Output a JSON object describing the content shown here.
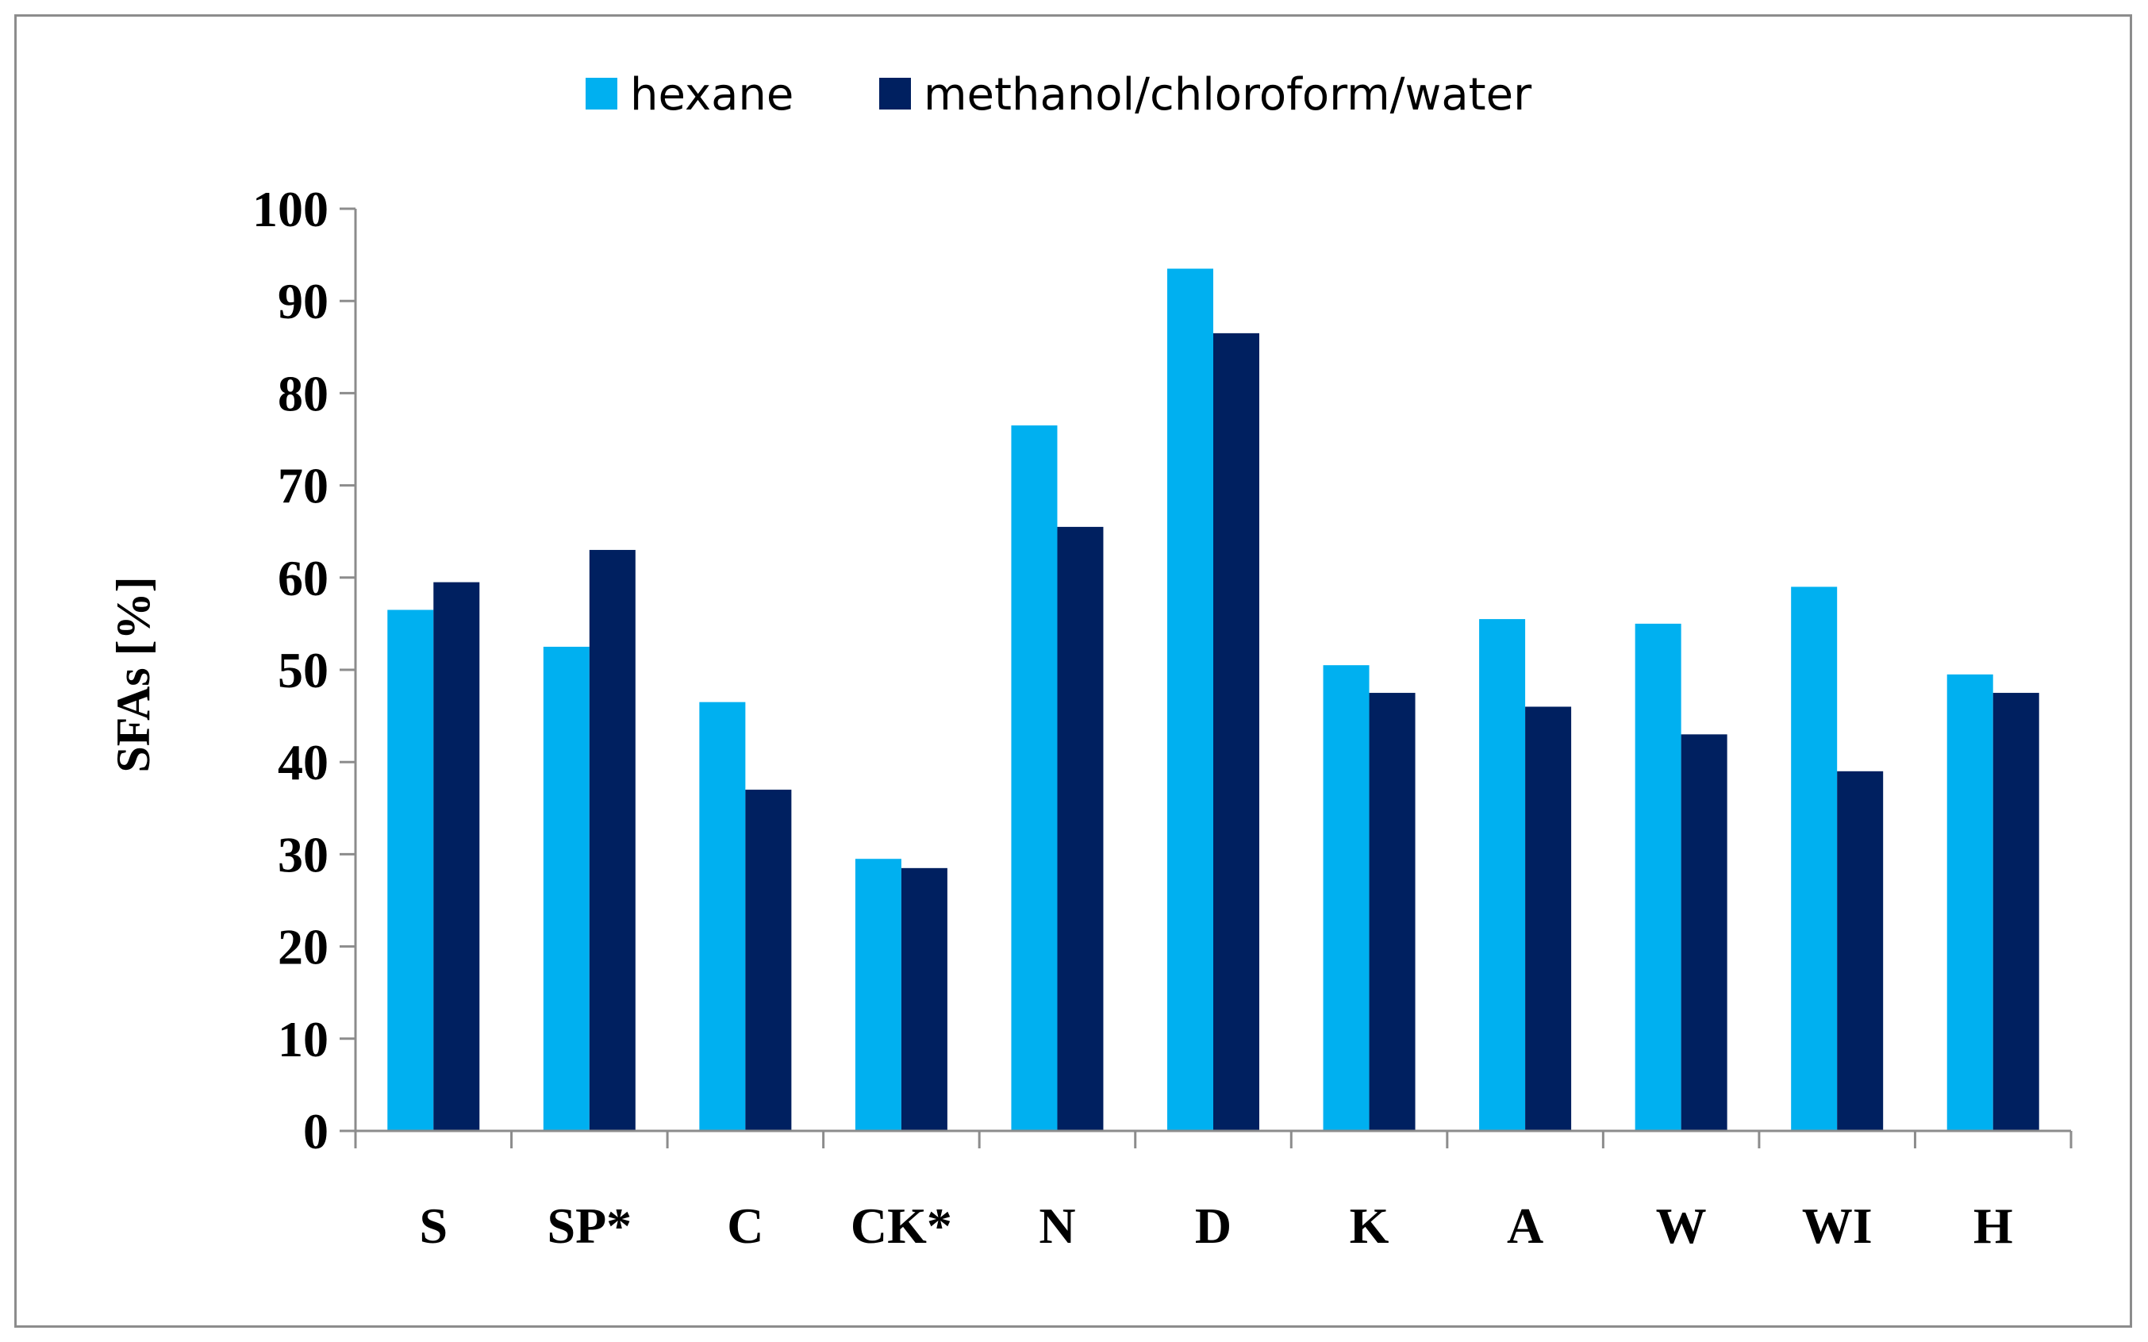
{
  "chart_data": {
    "type": "bar",
    "categories": [
      "S",
      "SP*",
      "C",
      "CK*",
      "N",
      "D",
      "K",
      "A",
      "W",
      "WI",
      "H"
    ],
    "series": [
      {
        "name": "hexane",
        "color": "#00b0f0",
        "values": [
          56.5,
          52.5,
          46.5,
          29.5,
          76.5,
          93.5,
          50.5,
          55.5,
          55,
          59,
          49.5
        ]
      },
      {
        "name": "methanol/chloroform/water",
        "color": "#002060",
        "values": [
          59.5,
          63,
          37,
          28.5,
          65.5,
          86.5,
          47.5,
          46,
          43,
          39,
          47.5
        ]
      }
    ],
    "title": "",
    "xlabel": "",
    "ylabel": "SFAs [%]",
    "ylim": [
      0,
      100
    ],
    "yticks": [
      0,
      10,
      20,
      30,
      40,
      50,
      60,
      70,
      80,
      90,
      100
    ],
    "grid": false,
    "legend_position": "top"
  }
}
